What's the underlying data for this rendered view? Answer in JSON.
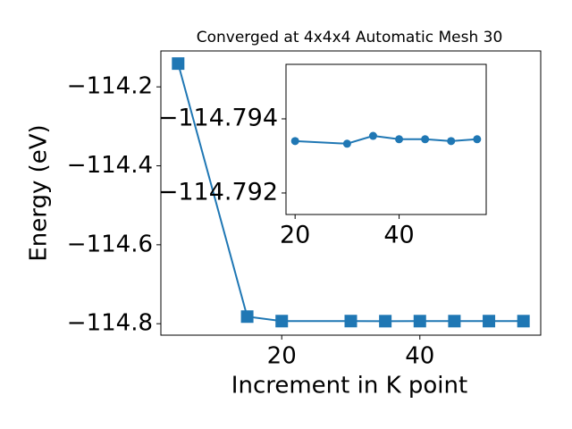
{
  "chart_data": [
    {
      "type": "line",
      "title": "Converged at 4x4x4 Automatic Mesh 30",
      "xlabel": "Increment in K point",
      "ylabel": "Energy (eV)",
      "x": [
        5,
        15,
        20,
        30,
        35,
        40,
        45,
        50,
        55
      ],
      "series": [
        {
          "color": "#1f77b4",
          "marker": "square",
          "values": [
            -114.141,
            -114.782,
            -114.7934,
            -114.79333,
            -114.79354,
            -114.79345,
            -114.79345,
            -114.7934,
            -114.79345
          ]
        }
      ],
      "xlim": [
        2.5,
        57.5
      ],
      "xticks": [
        20,
        40
      ],
      "ylim": [
        -114.829,
        -114.109
      ],
      "yticks": [
        {
          "value": -114.8,
          "label": "−114.8"
        },
        {
          "value": -114.6,
          "label": "−114.6"
        },
        {
          "value": -114.4,
          "label": "−114.4"
        },
        {
          "value": -114.2,
          "label": "−114.2"
        }
      ]
    },
    {
      "type": "line",
      "x": [
        20,
        30,
        35,
        40,
        45,
        50,
        55
      ],
      "series": [
        {
          "color": "#1f77b4",
          "marker": "circle",
          "values": [
            -114.7934,
            -114.79333,
            -114.79354,
            -114.79345,
            -114.79345,
            -114.7934,
            -114.79345
          ]
        }
      ],
      "xlim": [
        18.25,
        56.75
      ],
      "xticks": [
        20,
        40
      ],
      "ylim": [
        -114.79142,
        -114.79547
      ],
      "yticks": [
        {
          "value": -114.792,
          "label": "−114.792"
        },
        {
          "value": -114.794,
          "label": "−114.794"
        }
      ]
    }
  ]
}
